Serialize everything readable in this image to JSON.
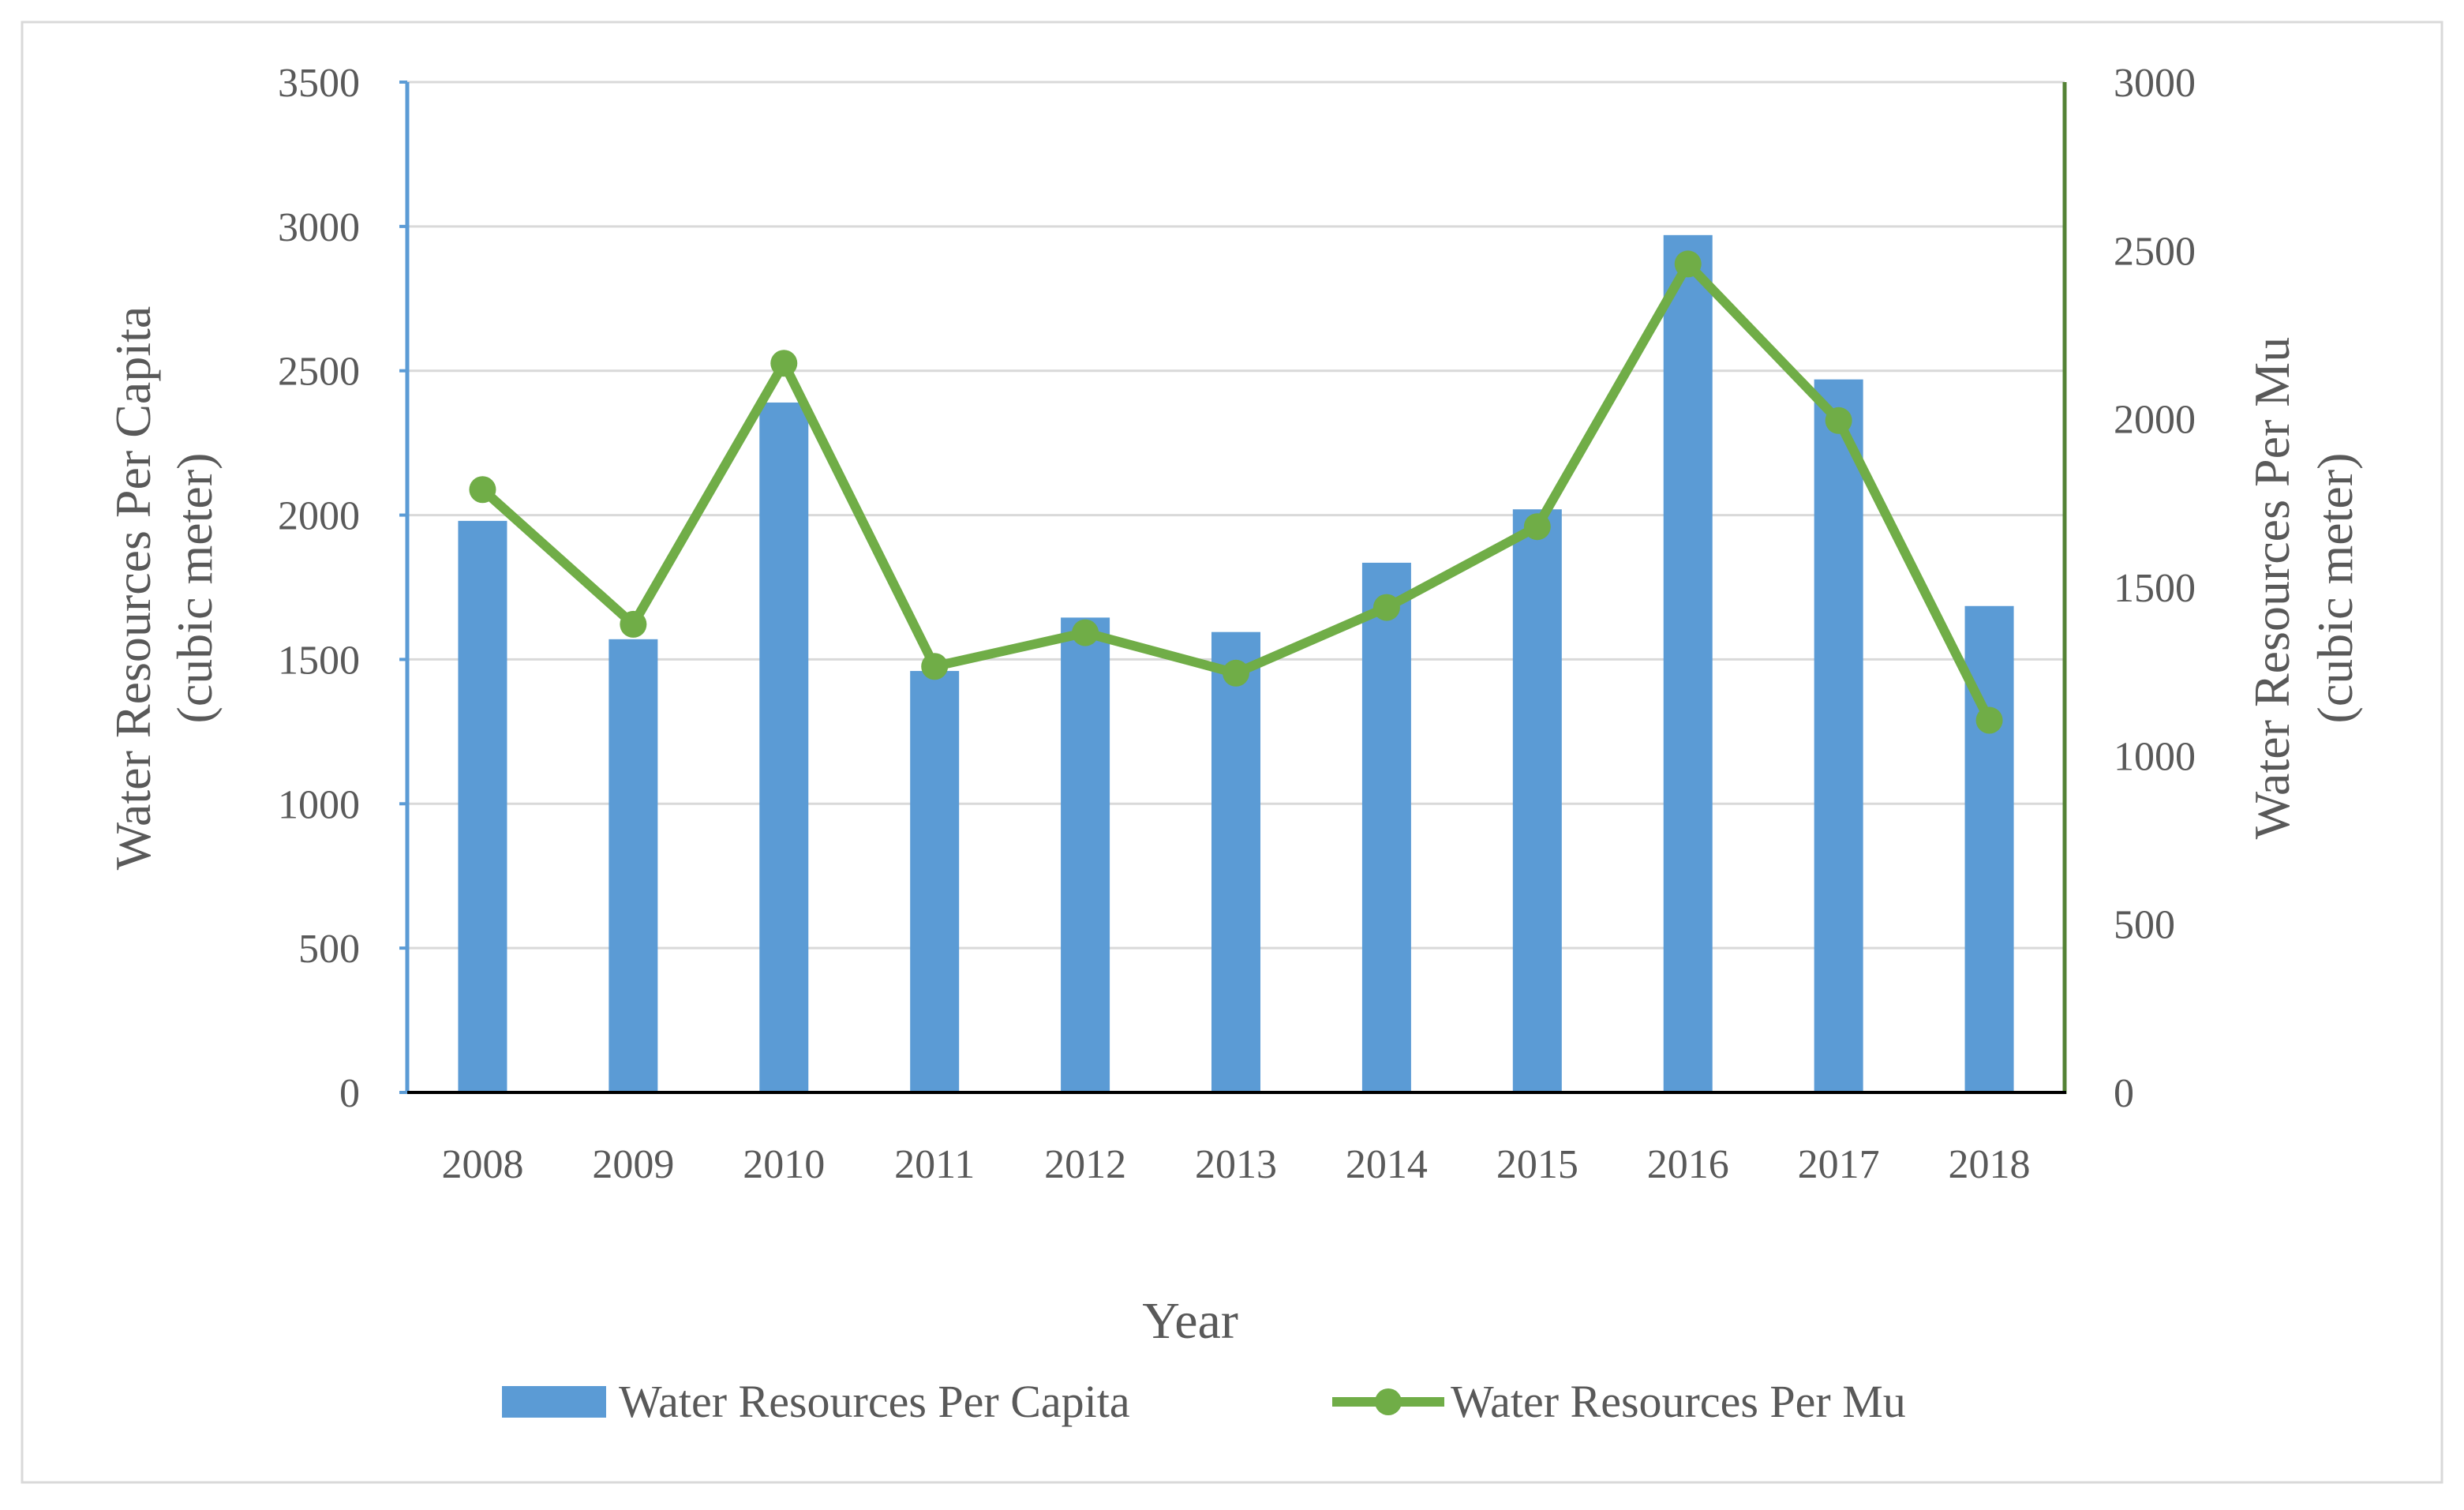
{
  "chart_data": {
    "type": "bar+line",
    "xlabel": "Year",
    "categories": [
      "2008",
      "2009",
      "2010",
      "2011",
      "2012",
      "2013",
      "2014",
      "2015",
      "2016",
      "2017",
      "2018"
    ],
    "left_axis": {
      "label_line1": "Water Resources Per Capita",
      "label_line2": "(cubic meter)",
      "range": [
        0,
        3500
      ],
      "ticks": [
        0,
        500,
        1000,
        1500,
        2000,
        2500,
        3000,
        3500
      ],
      "color": "#5b9bd5"
    },
    "right_axis": {
      "label_line1": "Water Resources Per Mu",
      "label_line2": "(cubic meter)",
      "range": [
        0,
        3000
      ],
      "ticks": [
        0,
        500,
        1000,
        1500,
        2000,
        2500,
        3000
      ],
      "color": "#548235"
    },
    "series": [
      {
        "name": "Water Resources Per Capita",
        "type": "bar",
        "axis": "left",
        "color": "#5b9bd5",
        "values": [
          1980,
          1570,
          2390,
          1460,
          1645,
          1595,
          1835,
          2020,
          2970,
          2470,
          1685
        ]
      },
      {
        "name": "Water Resources Per Mu",
        "type": "line",
        "axis": "right",
        "color": "#70ad47",
        "values": [
          1790,
          1390,
          2165,
          1265,
          1365,
          1245,
          1440,
          1680,
          2460,
          1995,
          1105
        ]
      }
    ],
    "grid": true,
    "legend": "bottom"
  }
}
